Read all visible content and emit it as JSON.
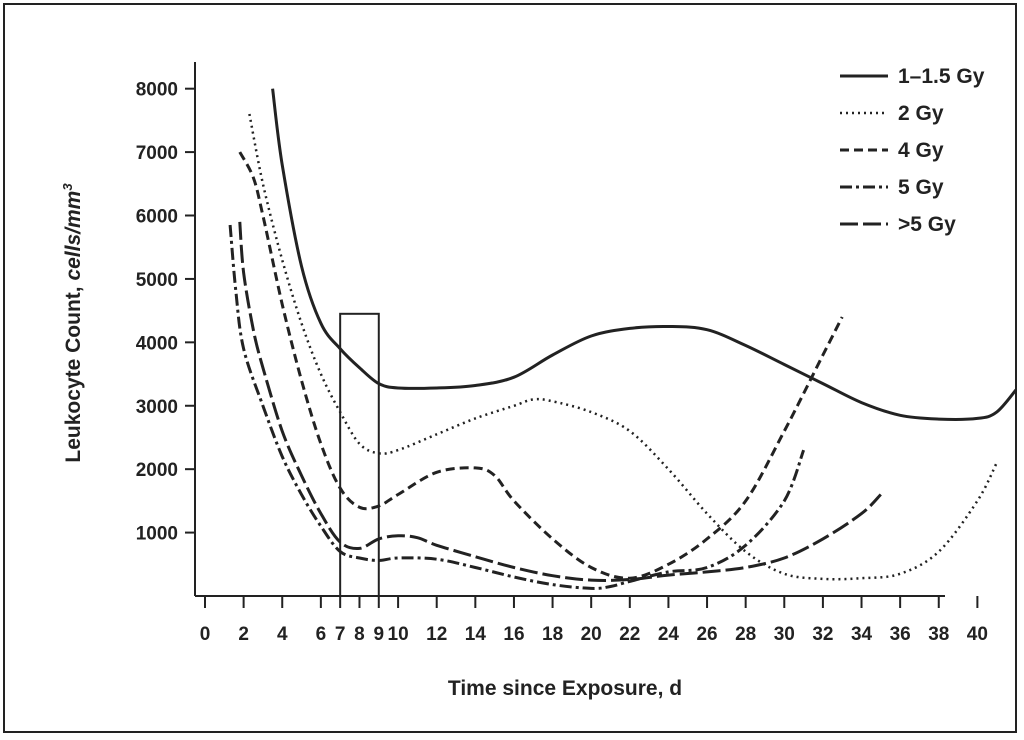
{
  "chart_data": {
    "type": "line",
    "title": "",
    "xlabel": "Time since Exposure, d",
    "ylabel_main": "Leukocyte Count, ",
    "ylabel_unit": "cells/mm",
    "ylabel_sup": "3",
    "xlim": [
      0,
      42
    ],
    "ylim": [
      0,
      8200
    ],
    "x_ticks": [
      0,
      2,
      4,
      6,
      7,
      8,
      9,
      10,
      12,
      14,
      16,
      18,
      20,
      22,
      24,
      26,
      28,
      30,
      32,
      34,
      36,
      38,
      40
    ],
    "y_ticks": [
      1000,
      2000,
      3000,
      4000,
      5000,
      6000,
      7000,
      8000
    ],
    "grid": false,
    "legend_position": "top-right",
    "highlight_window": {
      "x_start": 7,
      "x_end": 9,
      "y_top": 4450
    },
    "series": [
      {
        "name": "1–1.5 Gy",
        "dash": "solid",
        "color": "#222222",
        "x": [
          3.5,
          4,
          5,
          6,
          7,
          8,
          9,
          10,
          12,
          14,
          16,
          18,
          20,
          22,
          24,
          26,
          28,
          30,
          32,
          34,
          36,
          38,
          40,
          41,
          42
        ],
        "y": [
          8000,
          6800,
          5200,
          4300,
          3900,
          3600,
          3350,
          3280,
          3280,
          3320,
          3450,
          3800,
          4100,
          4220,
          4250,
          4200,
          3950,
          3650,
          3350,
          3050,
          2850,
          2790,
          2800,
          2900,
          3250
        ]
      },
      {
        "name": "2 Gy",
        "dash": "dotted",
        "color": "#222222",
        "x": [
          2.3,
          3,
          4,
          5,
          6,
          7,
          8,
          9,
          10,
          12,
          14,
          16,
          17,
          18,
          20,
          22,
          24,
          26,
          28,
          30,
          32,
          34,
          36,
          38,
          40,
          41
        ],
        "y": [
          7600,
          6500,
          5300,
          4300,
          3500,
          2900,
          2400,
          2250,
          2300,
          2550,
          2800,
          3000,
          3100,
          3070,
          2900,
          2600,
          2000,
          1300,
          700,
          350,
          270,
          280,
          350,
          700,
          1500,
          2100
        ]
      },
      {
        "name": "4 Gy",
        "dash": "dashed",
        "color": "#222222",
        "x": [
          1.8,
          2.5,
          3,
          4,
          5,
          6,
          7,
          8,
          9,
          10,
          12,
          14,
          15,
          16,
          18,
          20,
          22,
          24,
          26,
          28,
          30,
          32,
          33
        ],
        "y": [
          7000,
          6600,
          6000,
          4600,
          3400,
          2400,
          1700,
          1400,
          1420,
          1600,
          1950,
          2020,
          1900,
          1500,
          900,
          450,
          280,
          500,
          900,
          1500,
          2600,
          3800,
          4400
        ]
      },
      {
        "name": "5 Gy",
        "dash": "dashdot",
        "color": "#222222",
        "x": [
          1.3,
          1.6,
          2,
          3,
          4,
          5,
          6,
          7,
          8,
          9,
          10,
          12,
          14,
          16,
          18,
          20,
          21,
          22,
          24,
          26,
          28,
          30,
          31
        ],
        "y": [
          5850,
          4800,
          3900,
          3000,
          2200,
          1600,
          1100,
          700,
          600,
          560,
          600,
          580,
          450,
          300,
          180,
          120,
          150,
          230,
          380,
          450,
          800,
          1500,
          2300
        ]
      },
      {
        "name": ">5 Gy",
        "dash": "longdash",
        "color": "#222222",
        "x": [
          1.8,
          2,
          2.5,
          3,
          4,
          5,
          6,
          7,
          8,
          9,
          10,
          11,
          12,
          14,
          16,
          18,
          20,
          22,
          24,
          26,
          28,
          30,
          32,
          34,
          35
        ],
        "y": [
          5900,
          5100,
          4200,
          3600,
          2600,
          1900,
          1300,
          850,
          750,
          900,
          950,
          920,
          800,
          620,
          450,
          320,
          250,
          260,
          330,
          380,
          450,
          600,
          900,
          1300,
          1600
        ]
      }
    ]
  }
}
